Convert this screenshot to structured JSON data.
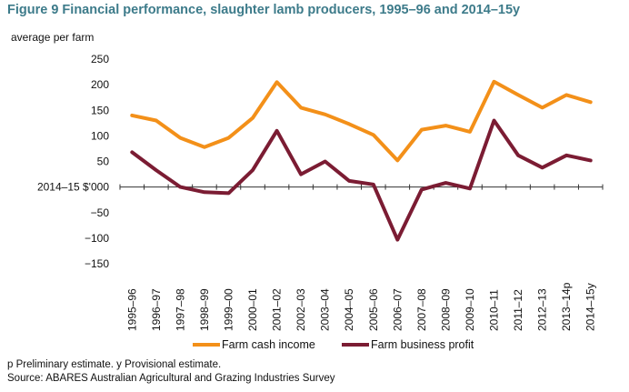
{
  "figure": {
    "title": "Figure 9 Financial performance, slaughter lamb producers, 1995–96 and 2014–15y",
    "unit_label": "average per farm",
    "notes": "p Preliminary estimate. y Provisional estimate.",
    "source": "Source: ABARES Australian Agricultural and Grazing Industries Survey"
  },
  "chart_data": {
    "type": "line",
    "title": "Figure 9 Financial performance, slaughter lamb producers, 1995–96 and 2014–15y",
    "xlabel": "",
    "ylabel": "average per farm",
    "y_axis_unit_label": "2014–15 $'000",
    "ylim": [
      -150,
      250
    ],
    "yticks": [
      250,
      200,
      150,
      100,
      50,
      -50,
      -100,
      -150
    ],
    "grid": false,
    "legend_position": "bottom",
    "categories": [
      "1995–96",
      "1996–97",
      "1997–98",
      "1998–99",
      "1999–00",
      "2000–01",
      "2001–02",
      "2002–03",
      "2003–04",
      "2004–05",
      "2005–06",
      "2006–07",
      "2007–08",
      "2008–09",
      "2009–10",
      "2010–11",
      "2011–12",
      "2012–13",
      "2013–14p",
      "2014–15y"
    ],
    "series": [
      {
        "name": "Farm cash income",
        "color": "#f39019",
        "values": [
          140,
          130,
          96,
          78,
          96,
          135,
          205,
          155,
          142,
          123,
          102,
          52,
          112,
          120,
          108,
          206,
          180,
          155,
          180,
          166
        ]
      },
      {
        "name": "Farm business profit",
        "color": "#7b1c33",
        "values": [
          68,
          33,
          0,
          -10,
          -12,
          33,
          110,
          25,
          50,
          12,
          5,
          -103,
          -5,
          8,
          -3,
          130,
          62,
          38,
          62,
          52
        ]
      }
    ]
  }
}
